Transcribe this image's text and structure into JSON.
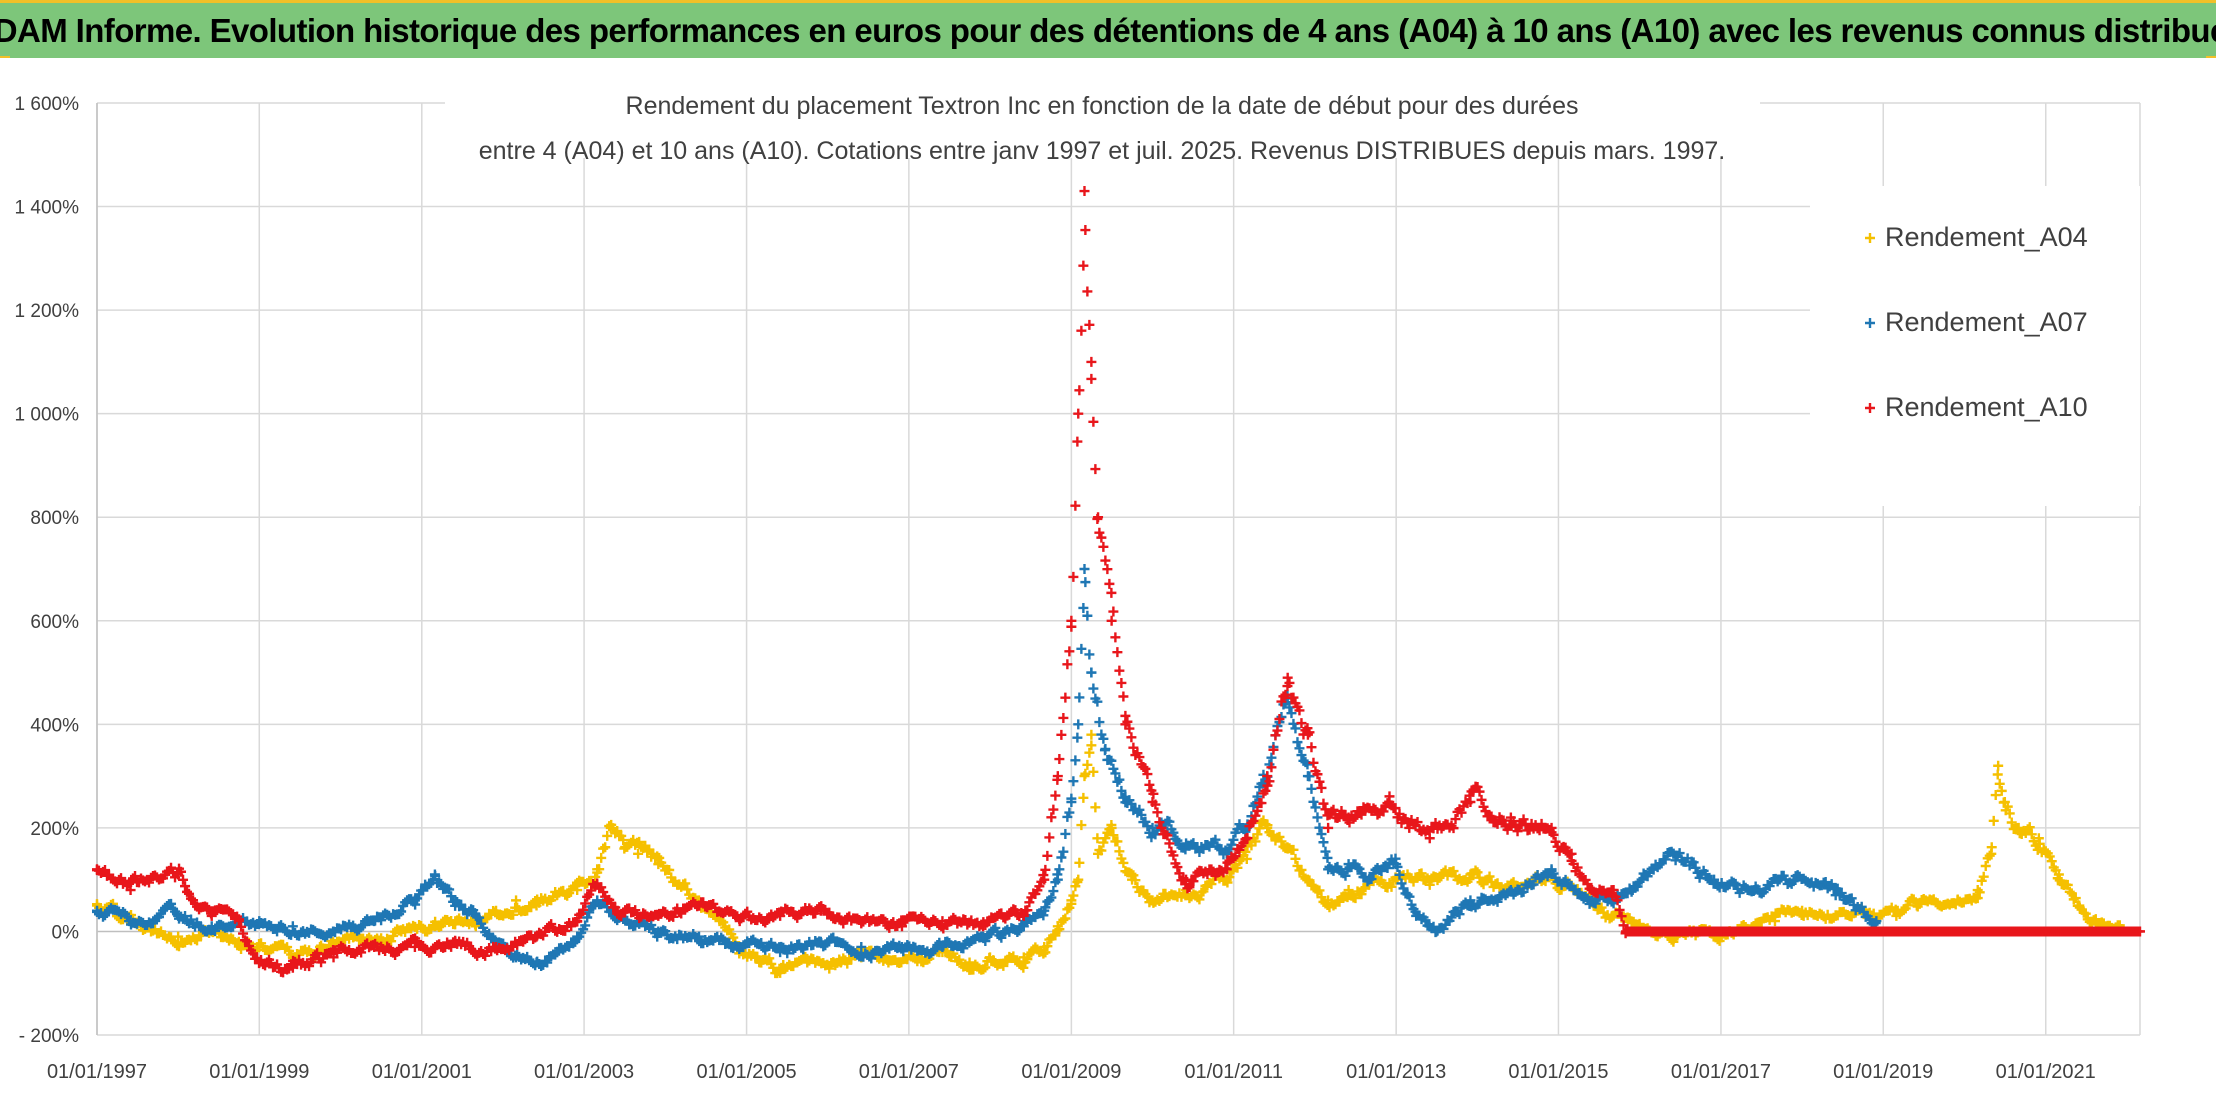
{
  "banner": {
    "title": "ADAM Informe. Evolution historique des performances en euros pour des détentions de 4 ans (A04) à 10 ans (A10) avec les revenus connus distribués"
  },
  "colors": {
    "banner_bg": "#7dc67a",
    "frame_accent": "#f2c028",
    "A04": "#f5c000",
    "A07": "#1f77b4",
    "A10": "#e8161b"
  },
  "chart_data": {
    "type": "scatter",
    "marker": "plus",
    "title_lines": [
      "Rendement du placement Textron Inc en fonction de la date de début pour des durées",
      "entre 4 (A04) et 10 ans (A10). Cotations entre janv 1997 et juil. 2025. Revenus DISTRIBUES depuis mars. 1997."
    ],
    "legend_position": "top-right",
    "grid": true,
    "x_axis": {
      "type": "date",
      "range": [
        "1997-01-01",
        "2022-03-01"
      ],
      "tick_labels": [
        "01/01/1997",
        "01/01/1999",
        "01/01/2001",
        "01/01/2003",
        "01/01/2005",
        "01/01/2007",
        "01/01/2009",
        "01/01/2011",
        "01/01/2013",
        "01/01/2015",
        "01/01/2017",
        "01/01/2019",
        "01/01/2021"
      ]
    },
    "y_axis": {
      "unit": "%",
      "range": [
        -200,
        1600
      ],
      "tick_values": [
        -200,
        0,
        200,
        400,
        600,
        800,
        1000,
        1200,
        1400,
        1600
      ],
      "tick_labels": [
        "- 200%",
        "0%",
        "200%",
        "400%",
        "600%",
        "800%",
        "1 000%",
        "1 200%",
        "1 400%",
        "1 600%"
      ]
    },
    "series": [
      {
        "name": "Rendement_A04",
        "color": "#f5c000",
        "points": [
          [
            "1997-01-01",
            50
          ],
          [
            "1997-06-01",
            20
          ],
          [
            "1997-09-01",
            0
          ],
          [
            "1998-01-01",
            -10
          ],
          [
            "1998-06-01",
            0
          ],
          [
            "1998-10-01",
            -20
          ],
          [
            "1999-01-01",
            -30
          ],
          [
            "1999-06-01",
            -50
          ],
          [
            "1999-10-01",
            -30
          ],
          [
            "2000-03-01",
            -10
          ],
          [
            "2000-06-01",
            -20
          ],
          [
            "2000-10-01",
            0
          ],
          [
            "2001-03-01",
            10
          ],
          [
            "2001-06-01",
            20
          ],
          [
            "2001-09-01",
            10
          ],
          [
            "2001-12-01",
            40
          ],
          [
            "2002-03-01",
            60
          ],
          [
            "2002-06-01",
            50
          ],
          [
            "2002-09-01",
            70
          ],
          [
            "2002-12-01",
            80
          ],
          [
            "2003-03-01",
            120
          ],
          [
            "2003-05-01",
            200
          ],
          [
            "2003-07-01",
            160
          ],
          [
            "2003-09-01",
            150
          ],
          [
            "2003-12-01",
            130
          ],
          [
            "2004-03-01",
            90
          ],
          [
            "2004-06-01",
            60
          ],
          [
            "2004-09-01",
            20
          ],
          [
            "2004-12-01",
            -30
          ],
          [
            "2005-03-01",
            -60
          ],
          [
            "2005-06-01",
            -80
          ],
          [
            "2005-10-01",
            -60
          ],
          [
            "2006-03-01",
            -60
          ],
          [
            "2006-06-01",
            -50
          ],
          [
            "2006-10-01",
            -60
          ],
          [
            "2007-03-01",
            -50
          ],
          [
            "2007-06-01",
            -40
          ],
          [
            "2007-10-01",
            -60
          ],
          [
            "2008-01-01",
            -50
          ],
          [
            "2008-06-01",
            -50
          ],
          [
            "2008-09-01",
            -30
          ],
          [
            "2008-11-01",
            10
          ],
          [
            "2009-01-01",
            60
          ],
          [
            "2009-02-01",
            100
          ],
          [
            "2009-03-01",
            300
          ],
          [
            "2009-04-01",
            380
          ],
          [
            "2009-05-01",
            150
          ],
          [
            "2009-07-01",
            200
          ],
          [
            "2009-10-01",
            100
          ],
          [
            "2010-01-01",
            60
          ],
          [
            "2010-06-01",
            80
          ],
          [
            "2010-12-01",
            100
          ],
          [
            "2011-03-01",
            140
          ],
          [
            "2011-06-01",
            200
          ],
          [
            "2011-09-01",
            160
          ],
          [
            "2011-12-01",
            100
          ],
          [
            "2012-03-01",
            60
          ],
          [
            "2012-06-01",
            80
          ],
          [
            "2012-09-01",
            90
          ],
          [
            "2013-01-01",
            100
          ],
          [
            "2013-06-01",
            90
          ],
          [
            "2013-12-01",
            110
          ],
          [
            "2014-06-01",
            90
          ],
          [
            "2014-12-01",
            110
          ],
          [
            "2015-06-01",
            60
          ],
          [
            "2015-09-01",
            30
          ],
          [
            "2016-01-01",
            10
          ],
          [
            "2016-06-01",
            -20
          ],
          [
            "2016-12-01",
            -10
          ],
          [
            "2017-03-01",
            0
          ],
          [
            "2017-09-01",
            20
          ],
          [
            "2018-01-01",
            40
          ],
          [
            "2018-06-01",
            30
          ],
          [
            "2018-12-01",
            20
          ],
          [
            "2019-03-01",
            30
          ],
          [
            "2019-06-01",
            50
          ],
          [
            "2019-12-01",
            60
          ],
          [
            "2020-03-01",
            80
          ],
          [
            "2020-05-01",
            150
          ],
          [
            "2020-06-01",
            320
          ],
          [
            "2020-07-01",
            250
          ],
          [
            "2020-09-01",
            200
          ],
          [
            "2020-12-01",
            180
          ],
          [
            "2021-03-01",
            110
          ],
          [
            "2021-06-01",
            50
          ],
          [
            "2021-09-01",
            10
          ],
          [
            "2021-12-01",
            0
          ]
        ]
      },
      {
        "name": "Rendement_A07",
        "color": "#1f77b4",
        "points": [
          [
            "1997-01-01",
            40
          ],
          [
            "1997-06-01",
            20
          ],
          [
            "1998-01-01",
            30
          ],
          [
            "1998-06-01",
            10
          ],
          [
            "1998-10-01",
            20
          ],
          [
            "1999-01-01",
            20
          ],
          [
            "1999-06-01",
            10
          ],
          [
            "1999-12-01",
            0
          ],
          [
            "2000-06-01",
            20
          ],
          [
            "2000-12-01",
            60
          ],
          [
            "2001-03-01",
            110
          ],
          [
            "2001-06-01",
            60
          ],
          [
            "2001-09-01",
            30
          ],
          [
            "2001-12-01",
            -20
          ],
          [
            "2002-03-01",
            -50
          ],
          [
            "2002-06-01",
            -60
          ],
          [
            "2002-09-01",
            -40
          ],
          [
            "2002-12-01",
            -10
          ],
          [
            "2003-03-01",
            60
          ],
          [
            "2003-06-01",
            30
          ],
          [
            "2003-09-01",
            20
          ],
          [
            "2003-12-01",
            0
          ],
          [
            "2004-06-01",
            -10
          ],
          [
            "2004-12-01",
            -30
          ],
          [
            "2005-06-01",
            -40
          ],
          [
            "2005-12-01",
            -20
          ],
          [
            "2006-06-01",
            -30
          ],
          [
            "2006-12-01",
            -30
          ],
          [
            "2007-06-01",
            -30
          ],
          [
            "2007-12-01",
            -10
          ],
          [
            "2008-06-01",
            10
          ],
          [
            "2008-09-01",
            40
          ],
          [
            "2008-11-01",
            100
          ],
          [
            "2009-01-01",
            250
          ],
          [
            "2009-02-01",
            400
          ],
          [
            "2009-03-01",
            700
          ],
          [
            "2009-04-01",
            500
          ],
          [
            "2009-06-01",
            350
          ],
          [
            "2009-09-01",
            260
          ],
          [
            "2010-01-01",
            200
          ],
          [
            "2010-06-01",
            170
          ],
          [
            "2010-12-01",
            150
          ],
          [
            "2011-03-01",
            200
          ],
          [
            "2011-06-01",
            290
          ],
          [
            "2011-09-01",
            450
          ],
          [
            "2011-12-01",
            300
          ],
          [
            "2012-03-01",
            120
          ],
          [
            "2012-06-01",
            130
          ],
          [
            "2012-09-01",
            100
          ],
          [
            "2013-01-01",
            130
          ],
          [
            "2013-04-01",
            30
          ],
          [
            "2013-07-01",
            0
          ],
          [
            "2013-12-01",
            60
          ],
          [
            "2014-06-01",
            80
          ],
          [
            "2014-12-01",
            120
          ],
          [
            "2015-06-01",
            60
          ],
          [
            "2015-12-01",
            80
          ],
          [
            "2016-06-01",
            150
          ],
          [
            "2016-12-01",
            100
          ],
          [
            "2017-06-01",
            80
          ],
          [
            "2017-12-01",
            100
          ],
          [
            "2018-06-01",
            70
          ],
          [
            "2018-12-01",
            20
          ]
        ]
      },
      {
        "name": "Rendement_A10",
        "color": "#e8161b",
        "points": [
          [
            "1997-01-01",
            120
          ],
          [
            "1997-06-01",
            80
          ],
          [
            "1998-01-01",
            110
          ],
          [
            "1998-06-01",
            30
          ],
          [
            "1998-10-01",
            20
          ],
          [
            "1999-01-01",
            -60
          ],
          [
            "1999-06-01",
            -70
          ],
          [
            "1999-12-01",
            -50
          ],
          [
            "2000-06-01",
            -30
          ],
          [
            "2000-12-01",
            -30
          ],
          [
            "2001-06-01",
            -20
          ],
          [
            "2001-12-01",
            -30
          ],
          [
            "2002-06-01",
            -10
          ],
          [
            "2002-12-01",
            20
          ],
          [
            "2003-03-01",
            90
          ],
          [
            "2003-06-01",
            40
          ],
          [
            "2003-12-01",
            30
          ],
          [
            "2004-06-01",
            50
          ],
          [
            "2004-12-01",
            20
          ],
          [
            "2005-06-01",
            30
          ],
          [
            "2005-12-01",
            40
          ],
          [
            "2006-06-01",
            20
          ],
          [
            "2006-12-01",
            10
          ],
          [
            "2007-06-01",
            20
          ],
          [
            "2007-12-01",
            10
          ],
          [
            "2008-06-01",
            30
          ],
          [
            "2008-09-01",
            100
          ],
          [
            "2008-11-01",
            300
          ],
          [
            "2009-01-01",
            600
          ],
          [
            "2009-02-01",
            1000
          ],
          [
            "2009-03-01",
            1430
          ],
          [
            "2009-04-01",
            1100
          ],
          [
            "2009-05-01",
            800
          ],
          [
            "2009-07-01",
            600
          ],
          [
            "2009-09-01",
            400
          ],
          [
            "2010-01-01",
            250
          ],
          [
            "2010-06-01",
            100
          ],
          [
            "2010-12-01",
            120
          ],
          [
            "2011-03-01",
            180
          ],
          [
            "2011-06-01",
            300
          ],
          [
            "2011-09-01",
            490
          ],
          [
            "2011-12-01",
            380
          ],
          [
            "2012-03-01",
            200
          ],
          [
            "2012-06-01",
            220
          ],
          [
            "2012-12-01",
            250
          ],
          [
            "2013-03-01",
            200
          ],
          [
            "2013-06-01",
            180
          ],
          [
            "2013-12-01",
            250
          ],
          [
            "2014-06-01",
            220
          ],
          [
            "2014-12-01",
            200
          ],
          [
            "2015-03-01",
            150
          ],
          [
            "2015-06-01",
            80
          ],
          [
            "2015-09-01",
            70
          ],
          [
            "2015-11-01",
            0
          ],
          [
            "2017-01-01",
            0
          ],
          [
            "2019-01-01",
            0
          ],
          [
            "2021-01-01",
            0
          ],
          [
            "2022-03-01",
            0
          ]
        ]
      }
    ]
  }
}
